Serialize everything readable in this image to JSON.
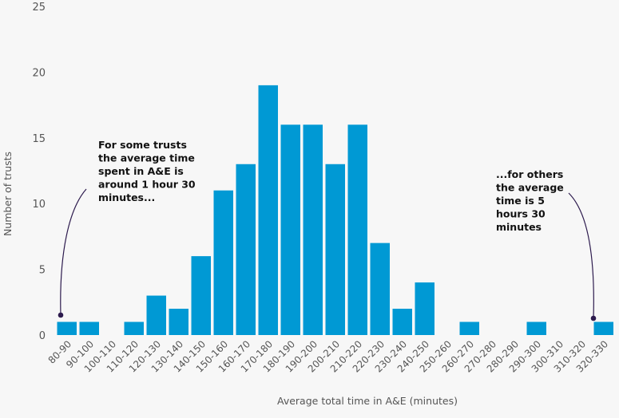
{
  "chart_data": {
    "type": "bar",
    "title": "",
    "xlabel": "Average total time in A&E (minutes)",
    "ylabel": "Number of trusts",
    "ylim": [
      0,
      25
    ],
    "yticks": [
      0,
      5,
      10,
      15,
      20,
      25
    ],
    "grid": false,
    "bar_color": "#0099d4",
    "annotation_color": "#2d1b4e",
    "categories": [
      "80-90",
      "90-100",
      "100-110",
      "110-120",
      "120-130",
      "130-140",
      "140-150",
      "150-160",
      "160-170",
      "170-180",
      "180-190",
      "190-200",
      "200-210",
      "210-220",
      "220-230",
      "230-240",
      "240-250",
      "250-260",
      "260-270",
      "270-280",
      "280-290",
      "290-300",
      "300-310",
      "310-320",
      "320-330"
    ],
    "values": [
      1,
      1,
      0,
      1,
      3,
      2,
      6,
      11,
      13,
      19,
      16,
      16,
      13,
      16,
      7,
      2,
      4,
      0,
      1,
      0,
      0,
      1,
      0,
      0,
      1
    ],
    "annotations": [
      {
        "lines": [
          "For some trusts",
          "the average time",
          "spent in A&E is",
          "around 1 hour 30",
          "minutes..."
        ],
        "points_to": "80-90"
      },
      {
        "lines": [
          "...for others",
          "the average",
          "time is 5",
          "hours 30",
          "minutes"
        ],
        "points_to": "320-330"
      }
    ]
  }
}
